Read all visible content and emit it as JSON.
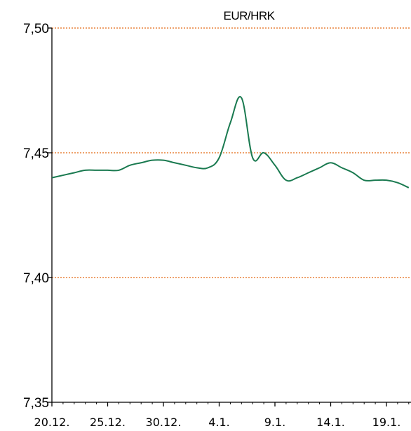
{
  "chart_data": {
    "type": "line",
    "title": "EUR/HRK",
    "xlabel": "",
    "ylabel": "",
    "ylim": [
      7.35,
      7.5
    ],
    "yticks": [
      7.35,
      7.4,
      7.45,
      7.5
    ],
    "ytick_labels": [
      "7,35",
      "7,40",
      "7,45",
      "7,50"
    ],
    "xlim": [
      "2017-12-20",
      "2018-01-21"
    ],
    "xticks": [
      "2017-12-20",
      "2017-12-25",
      "2017-12-30",
      "2018-01-04",
      "2018-01-09",
      "2018-01-14",
      "2018-01-19"
    ],
    "xtick_labels": [
      "20.12.",
      "25.12.",
      "30.12.",
      "4.1.",
      "9.1.",
      "14.1.",
      "19.1."
    ],
    "grid": "horizontal",
    "colors": {
      "line": "#1a7a50",
      "grid": "#e8823a"
    },
    "series": [
      {
        "x": [
          "2017-12-20",
          "2017-12-21",
          "2017-12-22",
          "2017-12-23",
          "2017-12-24",
          "2017-12-25",
          "2017-12-26",
          "2017-12-27",
          "2017-12-28",
          "2017-12-29",
          "2017-12-30",
          "2017-12-31",
          "2018-01-01",
          "2018-01-02",
          "2018-01-03",
          "2018-01-04",
          "2018-01-05",
          "2018-01-06",
          "2018-01-07",
          "2018-01-08",
          "2018-01-09",
          "2018-01-10",
          "2018-01-11",
          "2018-01-12",
          "2018-01-13",
          "2018-01-14",
          "2018-01-15",
          "2018-01-16",
          "2018-01-17",
          "2018-01-18",
          "2018-01-19",
          "2018-01-20",
          "2018-01-21"
        ],
        "y": [
          7.44,
          7.441,
          7.442,
          7.443,
          7.443,
          7.443,
          7.443,
          7.445,
          7.446,
          7.447,
          7.447,
          7.446,
          7.445,
          7.444,
          7.444,
          7.448,
          7.462,
          7.472,
          7.448,
          7.45,
          7.445,
          7.439,
          7.44,
          7.442,
          7.444,
          7.446,
          7.444,
          7.442,
          7.439,
          7.439,
          7.439,
          7.438,
          7.436
        ]
      }
    ]
  }
}
